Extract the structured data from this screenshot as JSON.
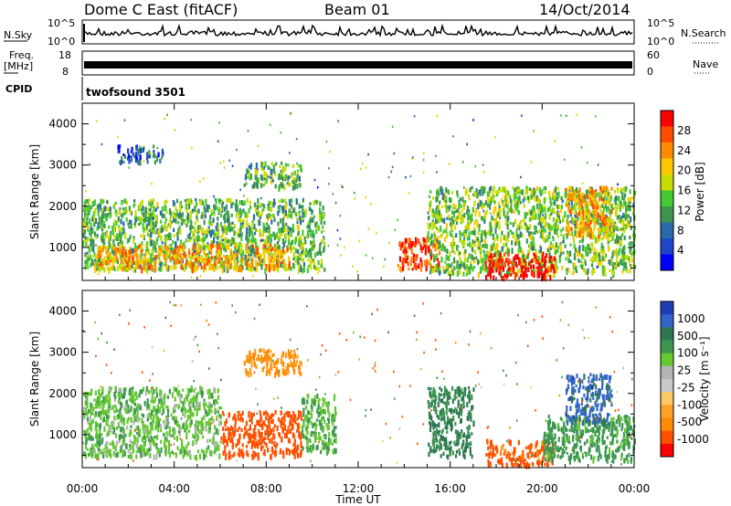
{
  "header": {
    "title": "Dome C East (fitACF)",
    "beam": "Beam 01",
    "date": "14/Oct/2014"
  },
  "top_panels": {
    "nsky_label": "N.Sky",
    "nsky_ticks": [
      "10^5",
      "10^0"
    ],
    "nsearch_label": "N.Search",
    "nsearch_ticks": [
      "10^5",
      "10^0"
    ],
    "freq_label_1": "Freq.",
    "freq_label_2": "[MHz]",
    "freq_ticks": [
      "18",
      "8"
    ],
    "nave_label": "Nave",
    "nave_ticks": [
      "60",
      "0"
    ],
    "cpid_label": "CPID",
    "cpid_text": "twofsound 3501"
  },
  "power_panel": {
    "ylabel": "Slant Range [km]",
    "cbar_label": "Power [dB]",
    "cbar_ticks": [
      "28",
      "24",
      "20",
      "16",
      "12",
      "8",
      "4"
    ],
    "cbar_colors": [
      "#ff0000",
      "#ff4d00",
      "#ff8c00",
      "#ffc800",
      "#c8dc00",
      "#46c832",
      "#3c9650",
      "#2a6aa8",
      "#1e46c8",
      "#0000ff"
    ]
  },
  "velocity_panel": {
    "ylabel": "Slant Range [km]",
    "cbar_label": "Velocity [m s⁻¹]",
    "cbar_ticks": [
      "1000",
      "500",
      "100",
      "25",
      "-25",
      "-100",
      "-500",
      "-1000"
    ],
    "cbar_colors": [
      "#1e3cb4",
      "#3264c8",
      "#2d7850",
      "#3c9650",
      "#64c832",
      "#b4b4b4",
      "#c8c8c8",
      "#ffc864",
      "#ffa028",
      "#ff8c00",
      "#ff5000",
      "#ff0000"
    ]
  },
  "x_axis": {
    "ticks": [
      "00:00",
      "04:00",
      "08:00",
      "12:00",
      "16:00",
      "20:00",
      "00:00"
    ],
    "label": "Time UT"
  },
  "chart_data": {
    "type": "heatmap",
    "title": "Dome C East (fitACF)",
    "subtitle": "Beam 01",
    "date": "14/Oct/2014",
    "xlabel": "Time UT",
    "xlim_hours": [
      0,
      24
    ],
    "x_ticks": [
      "00:00",
      "04:00",
      "08:00",
      "12:00",
      "16:00",
      "20:00",
      "00:00"
    ],
    "panels": [
      {
        "name": "Power",
        "ylabel": "Slant Range [km]",
        "ylim": [
          200,
          4500
        ],
        "y_ticks": [
          1000,
          2000,
          3000,
          4000
        ],
        "colorbar_label": "Power [dB]",
        "colorbar_ticks": [
          28,
          24,
          20,
          16,
          12,
          8,
          4
        ],
        "features": [
          {
            "t0": 0.0,
            "t1": 10.5,
            "r0": 500,
            "r1": 2200,
            "level": 14
          },
          {
            "t0": 0.5,
            "t1": 9.0,
            "r0": 500,
            "r1": 1100,
            "level": 22
          },
          {
            "t0": 1.5,
            "t1": 3.5,
            "r0": 3100,
            "r1": 3500,
            "level": 8
          },
          {
            "t0": 7.0,
            "t1": 9.5,
            "r0": 2500,
            "r1": 3100,
            "level": 14
          },
          {
            "t0": 13.7,
            "t1": 15.5,
            "r0": 500,
            "r1": 1300,
            "level": 27
          },
          {
            "t0": 15.0,
            "t1": 24.0,
            "r0": 400,
            "r1": 2500,
            "level": 15
          },
          {
            "t0": 17.5,
            "t1": 20.5,
            "r0": 300,
            "r1": 900,
            "level": 29
          },
          {
            "t0": 21.0,
            "t1": 23.0,
            "r0": 1300,
            "r1": 2500,
            "level": 22
          }
        ]
      },
      {
        "name": "Velocity",
        "ylabel": "Slant Range [km]",
        "ylim": [
          200,
          4500
        ],
        "y_ticks": [
          1000,
          2000,
          3000,
          4000
        ],
        "colorbar_label": "Velocity [m s⁻¹]",
        "colorbar_ticks": [
          1000,
          500,
          100,
          25,
          -25,
          -100,
          -500,
          -1000
        ],
        "features": [
          {
            "t0": 0.0,
            "t1": 6.0,
            "r0": 500,
            "r1": 2200,
            "level": 80
          },
          {
            "t0": 6.0,
            "t1": 9.5,
            "r0": 500,
            "r1": 1600,
            "level": -300
          },
          {
            "t0": 9.5,
            "t1": 11.0,
            "r0": 600,
            "r1": 2000,
            "level": 100
          },
          {
            "t0": 7.0,
            "t1": 9.5,
            "r0": 2500,
            "r1": 3100,
            "level": -60
          },
          {
            "t0": 15.0,
            "t1": 17.0,
            "r0": 500,
            "r1": 2200,
            "level": 300
          },
          {
            "t0": 17.5,
            "t1": 20.5,
            "r0": 300,
            "r1": 900,
            "level": -150
          },
          {
            "t0": 20.0,
            "t1": 24.0,
            "r0": 400,
            "r1": 1500,
            "level": 150
          },
          {
            "t0": 21.0,
            "t1": 23.0,
            "r0": 1300,
            "r1": 2500,
            "level": 700
          }
        ]
      }
    ]
  }
}
